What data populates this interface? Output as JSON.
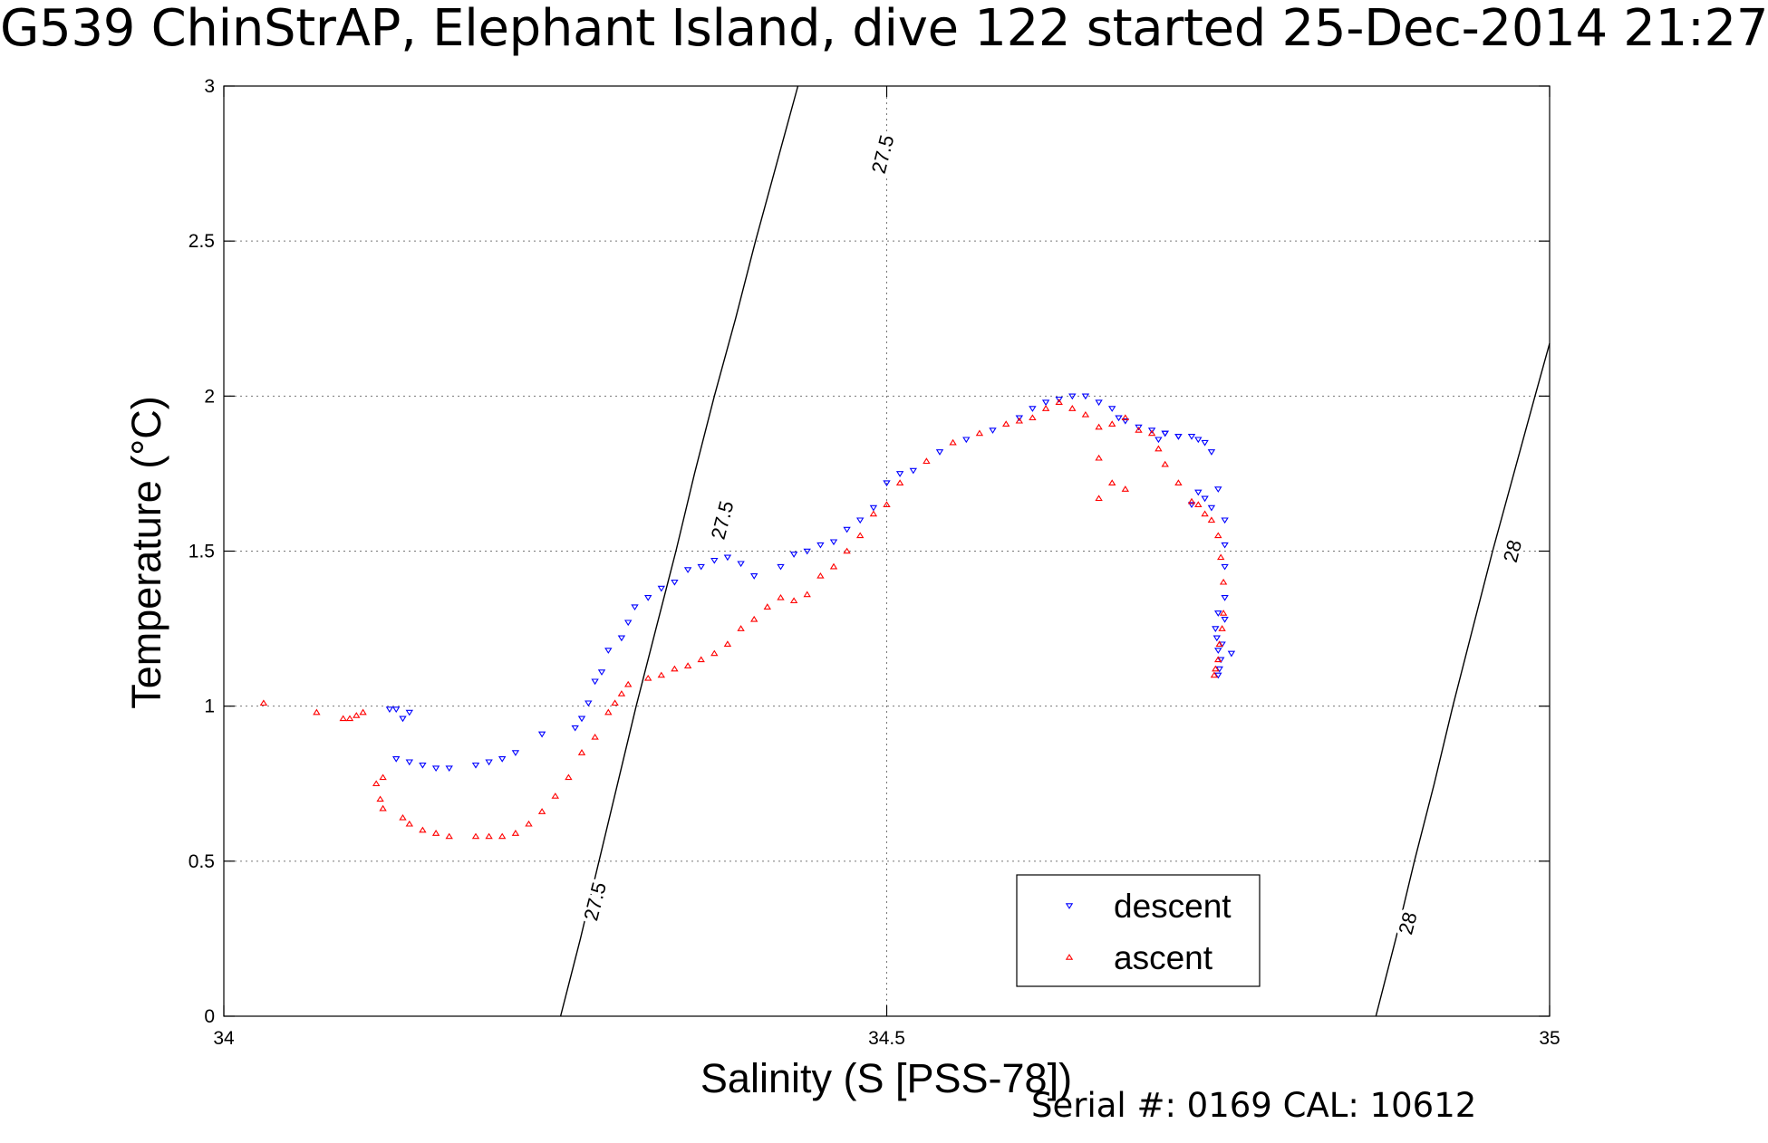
{
  "chart_data": {
    "type": "scatter",
    "title": "G539 ChinStrAP, Elephant Island, dive 122 started 25-Dec-2014 21:27",
    "xlabel": "Salinity (S [PSS-78])",
    "ylabel": "Temperature (°C)",
    "xlim": [
      34,
      35
    ],
    "ylim": [
      0,
      3
    ],
    "xticks": [
      34,
      34.5,
      35
    ],
    "xtick_labels": [
      "34",
      "34.5",
      "35"
    ],
    "yticks": [
      0,
      0.5,
      1,
      1.5,
      2,
      2.5,
      3
    ],
    "ytick_labels": [
      "0",
      "0.5",
      "1",
      "1.5",
      "2",
      "2.5",
      "3"
    ],
    "grid": true,
    "legend_position": "bottom-right",
    "colors": {
      "descent": "#0000ff",
      "ascent": "#ff0000",
      "contour": "#000000"
    },
    "series": [
      {
        "name": "descent",
        "marker": "triangle-down",
        "x": [
          34.125,
          34.13,
          34.14,
          34.135,
          34.13,
          34.14,
          34.15,
          34.16,
          34.17,
          34.19,
          34.2,
          34.21,
          34.22,
          34.24,
          34.265,
          34.27,
          34.275,
          34.28,
          34.285,
          34.29,
          34.3,
          34.305,
          34.31,
          34.32,
          34.33,
          34.34,
          34.35,
          34.36,
          34.37,
          34.38,
          34.39,
          34.4,
          34.42,
          34.43,
          34.44,
          34.45,
          34.46,
          34.47,
          34.48,
          34.49,
          34.5,
          34.51,
          34.52,
          34.54,
          34.56,
          34.58,
          34.6,
          34.61,
          34.62,
          34.63,
          34.64,
          34.65,
          34.66,
          34.67,
          34.675,
          34.68,
          34.69,
          34.7,
          34.71,
          34.72,
          34.73,
          34.735,
          34.74,
          34.745,
          34.75,
          34.755,
          34.755,
          34.755,
          34.755,
          34.755,
          34.753,
          34.752,
          34.751,
          34.75,
          34.75,
          34.749,
          34.748,
          34.75,
          34.76,
          34.745,
          34.74,
          34.735,
          34.73,
          34.72,
          34.71,
          34.705
        ],
        "y": [
          0.99,
          0.99,
          0.98,
          0.96,
          0.83,
          0.82,
          0.81,
          0.8,
          0.8,
          0.81,
          0.82,
          0.83,
          0.85,
          0.91,
          0.93,
          0.96,
          1.01,
          1.08,
          1.11,
          1.18,
          1.22,
          1.27,
          1.32,
          1.35,
          1.38,
          1.4,
          1.44,
          1.45,
          1.47,
          1.48,
          1.46,
          1.42,
          1.45,
          1.49,
          1.5,
          1.52,
          1.53,
          1.57,
          1.6,
          1.64,
          1.72,
          1.75,
          1.76,
          1.82,
          1.86,
          1.89,
          1.93,
          1.96,
          1.98,
          1.99,
          2.0,
          2.0,
          1.98,
          1.96,
          1.93,
          1.92,
          1.9,
          1.89,
          1.88,
          1.87,
          1.87,
          1.86,
          1.85,
          1.82,
          1.7,
          1.6,
          1.52,
          1.45,
          1.35,
          1.28,
          1.2,
          1.15,
          1.12,
          1.1,
          1.18,
          1.22,
          1.25,
          1.3,
          1.17,
          1.64,
          1.67,
          1.69,
          1.65,
          1.87,
          1.88,
          1.86
        ]
      },
      {
        "name": "ascent",
        "marker": "triangle-up",
        "x": [
          34.03,
          34.07,
          34.09,
          34.095,
          34.1,
          34.105,
          34.12,
          34.115,
          34.118,
          34.12,
          34.135,
          34.14,
          34.15,
          34.16,
          34.17,
          34.19,
          34.2,
          34.21,
          34.22,
          34.23,
          34.24,
          34.25,
          34.26,
          34.27,
          34.28,
          34.29,
          34.295,
          34.3,
          34.305,
          34.32,
          34.33,
          34.34,
          34.35,
          34.36,
          34.37,
          34.38,
          34.39,
          34.4,
          34.41,
          34.42,
          34.43,
          34.44,
          34.45,
          34.46,
          34.47,
          34.48,
          34.49,
          34.5,
          34.51,
          34.53,
          34.55,
          34.57,
          34.59,
          34.6,
          34.61,
          34.62,
          34.63,
          34.64,
          34.65,
          34.66,
          34.67,
          34.68,
          34.69,
          34.7,
          34.705,
          34.71,
          34.72,
          34.73,
          34.735,
          34.74,
          34.745,
          34.75,
          34.752,
          34.754,
          34.754,
          34.753,
          34.751,
          34.75,
          34.748,
          34.747,
          34.68,
          34.67,
          34.66,
          34.66
        ],
        "y": [
          1.01,
          0.98,
          0.96,
          0.96,
          0.97,
          0.98,
          0.77,
          0.75,
          0.7,
          0.67,
          0.64,
          0.62,
          0.6,
          0.59,
          0.58,
          0.58,
          0.58,
          0.58,
          0.59,
          0.62,
          0.66,
          0.71,
          0.77,
          0.85,
          0.9,
          0.98,
          1.01,
          1.04,
          1.07,
          1.09,
          1.1,
          1.12,
          1.13,
          1.15,
          1.17,
          1.2,
          1.25,
          1.28,
          1.32,
          1.35,
          1.34,
          1.36,
          1.42,
          1.45,
          1.5,
          1.55,
          1.62,
          1.65,
          1.72,
          1.79,
          1.85,
          1.88,
          1.91,
          1.92,
          1.93,
          1.96,
          1.98,
          1.96,
          1.94,
          1.9,
          1.91,
          1.93,
          1.89,
          1.88,
          1.83,
          1.78,
          1.72,
          1.66,
          1.65,
          1.62,
          1.6,
          1.55,
          1.48,
          1.4,
          1.3,
          1.25,
          1.2,
          1.15,
          1.12,
          1.1,
          1.7,
          1.72,
          1.67,
          1.8
        ]
      }
    ],
    "contours": [
      {
        "level": "27.5",
        "points": [
          [
            34.254,
            0
          ],
          [
            34.269,
            0.25
          ],
          [
            34.283,
            0.5
          ],
          [
            34.297,
            0.75
          ],
          [
            34.311,
            1
          ],
          [
            34.326,
            1.25
          ],
          [
            34.341,
            1.5
          ],
          [
            34.355,
            1.75
          ],
          [
            34.37,
            2
          ],
          [
            34.386,
            2.25
          ],
          [
            34.401,
            2.5
          ],
          [
            34.417,
            2.75
          ],
          [
            34.433,
            3
          ]
        ],
        "labels": [
          {
            "x": 34.28,
            "y": 0.37,
            "text": "27.5"
          },
          {
            "x": 34.376,
            "y": 1.6,
            "text": "27.5"
          },
          {
            "x": 34.497,
            "y": 2.78,
            "text": "27.5"
          }
        ]
      },
      {
        "level": "28",
        "points": [
          [
            34.869,
            0
          ],
          [
            34.884,
            0.25
          ],
          [
            34.898,
            0.5
          ],
          [
            34.913,
            0.75
          ],
          [
            34.927,
            1
          ],
          [
            34.942,
            1.25
          ],
          [
            34.957,
            1.5
          ],
          [
            34.973,
            1.75
          ],
          [
            34.989,
            2
          ],
          [
            35.0,
            2.17
          ]
        ],
        "labels": [
          {
            "x": 34.893,
            "y": 0.3,
            "text": "28"
          },
          {
            "x": 34.972,
            "y": 1.5,
            "text": "28"
          }
        ]
      }
    ],
    "legend": [
      {
        "label": "descent",
        "marker": "triangle-down",
        "color": "#0000ff"
      },
      {
        "label": "ascent",
        "marker": "triangle-up",
        "color": "#ff0000"
      }
    ]
  },
  "annotations": {
    "serial": "Serial #: 0169 CAL: 10612"
  }
}
